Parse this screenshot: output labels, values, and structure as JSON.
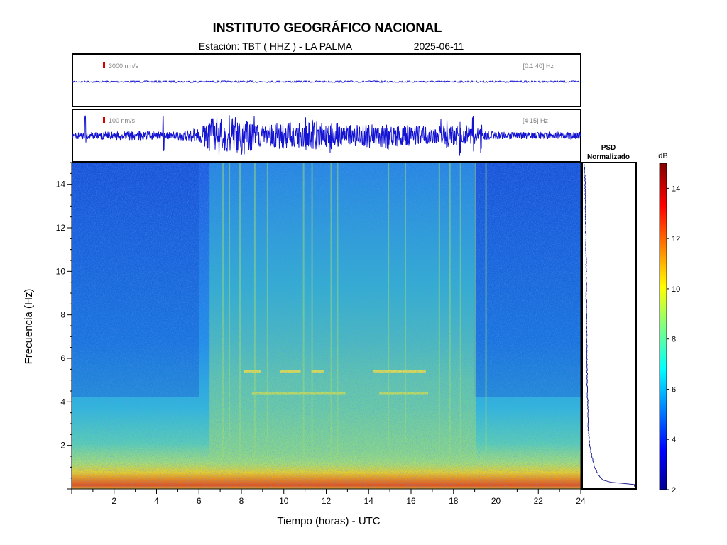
{
  "header": {
    "title": "INSTITUTO GEOGRÁFICO NACIONAL",
    "station_label": "Estación:  TBT ( HHZ ) - LA PALMA",
    "date": "2025-06-11"
  },
  "colors": {
    "trace": "#1414d2",
    "scale_marker": "#d40000",
    "psd_line": "#1a1a8c"
  },
  "chart_data": [
    {
      "type": "line",
      "name": "seismogram-broadband",
      "scale_label": "3000 nm/s",
      "band_label": "[0.1 40] Hz",
      "xlim": [
        0,
        24
      ],
      "description_level": "low-amplitude flat trace"
    },
    {
      "type": "line",
      "name": "seismogram-filtered",
      "scale_label": "100 nm/s",
      "band_label": "[4 15] Hz",
      "xlim": [
        0,
        24
      ],
      "x": [
        0,
        1,
        2,
        3,
        4,
        5,
        6,
        6.5,
        7,
        7.5,
        8,
        8.5,
        9,
        9.5,
        10,
        10.5,
        11,
        11.5,
        12,
        12.5,
        13,
        13.5,
        14,
        14.5,
        15,
        15.5,
        16,
        16.5,
        17,
        17.5,
        18,
        18.5,
        19,
        19.5,
        20,
        21,
        22,
        23,
        24
      ],
      "envelope": [
        0.15,
        0.15,
        0.18,
        0.2,
        0.17,
        0.18,
        0.3,
        0.7,
        0.9,
        0.75,
        0.85,
        0.6,
        0.45,
        0.5,
        0.55,
        0.55,
        0.5,
        0.6,
        0.5,
        0.45,
        0.45,
        0.45,
        0.5,
        0.5,
        0.55,
        0.5,
        0.45,
        0.4,
        0.3,
        0.45,
        0.4,
        0.5,
        0.35,
        0.2,
        0.18,
        0.15,
        0.15,
        0.15,
        0.15
      ],
      "spikes": [
        0.6,
        4.3,
        6.8,
        7.1,
        7.4,
        7.9,
        8.6,
        11.0,
        11.3,
        12.2,
        12.5,
        14.9,
        17.4,
        17.7,
        18.3,
        18.9,
        19.3
      ]
    },
    {
      "type": "heatmap",
      "name": "spectrogram",
      "xlabel": "Tiempo (horas) - UTC",
      "ylabel": "Frecuencia  (Hz)",
      "xlim": [
        0,
        24
      ],
      "ylim": [
        0,
        15
      ],
      "xticks": [
        2,
        4,
        6,
        8,
        10,
        12,
        14,
        16,
        18,
        20,
        22,
        24
      ],
      "yticks": [
        2,
        4,
        6,
        8,
        10,
        12,
        14
      ],
      "low_freq_band_dB": 12,
      "quiet_hours": [
        [
          0,
          6
        ],
        [
          19,
          24
        ]
      ],
      "active_hours": [
        6.5,
        19
      ],
      "tonal_lines": [
        {
          "freq": 5.4,
          "segments": [
            [
              8.1,
              8.9
            ],
            [
              9.8,
              10.8
            ],
            [
              11.3,
              11.9
            ],
            [
              14.2,
              16.7
            ]
          ]
        },
        {
          "freq": 4.4,
          "segments": [
            [
              8.5,
              12.9
            ],
            [
              14.5,
              16.8
            ]
          ]
        }
      ],
      "vertical_streaks": [
        7.1,
        7.4,
        7.9,
        8.6,
        9.2,
        10.9,
        11.3,
        12.2,
        12.5,
        14.9,
        15.7,
        17.3,
        17.8,
        18.3,
        19.0,
        19.5
      ]
    },
    {
      "type": "line",
      "name": "psd",
      "title": "PSD\nNormalizado",
      "y": [
        0.2,
        0.3,
        0.4,
        0.6,
        0.8,
        1,
        1.5,
        2,
        2.5,
        3,
        4,
        5,
        6,
        7,
        8,
        9,
        10,
        11,
        12,
        13,
        14,
        15
      ],
      "values": [
        1.0,
        0.55,
        0.38,
        0.3,
        0.26,
        0.22,
        0.16,
        0.12,
        0.1,
        0.09,
        0.08,
        0.07,
        0.065,
        0.06,
        0.055,
        0.052,
        0.05,
        0.045,
        0.04,
        0.035,
        0.03,
        0.01
      ]
    },
    {
      "type": "colorbar",
      "name": "colorbar",
      "label": "dB",
      "range": [
        2,
        15
      ],
      "ticks": [
        2,
        4,
        6,
        8,
        10,
        12,
        14
      ]
    }
  ]
}
